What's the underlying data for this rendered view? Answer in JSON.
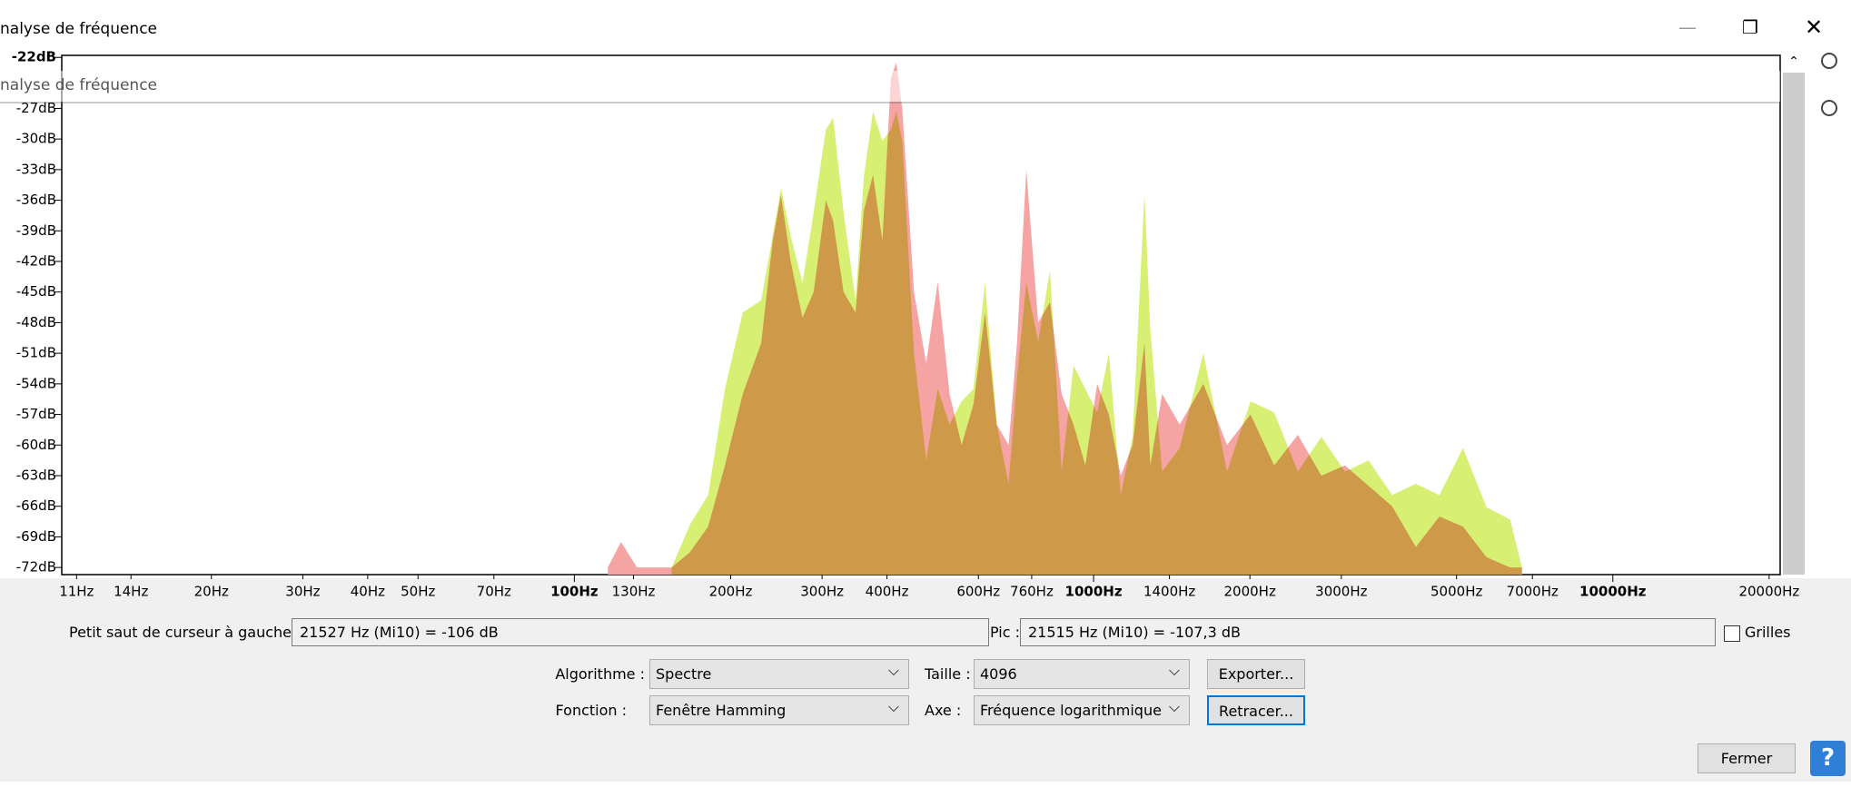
{
  "window": {
    "title": "nalyse de fréquence",
    "ghost_title": "nalyse de fréquence"
  },
  "chart_data": {
    "type": "area",
    "x": [
      116,
      123,
      132,
      154,
      167,
      181,
      195,
      211,
      229,
      241,
      250,
      261,
      275,
      289,
      305,
      315,
      330,
      348,
      361,
      376,
      392,
      407,
      417,
      428,
      451,
      476,
      501,
      528,
      557,
      587,
      618,
      651,
      686,
      712,
      742,
      782,
      824,
      868,
      915,
      964,
      1016,
      1070,
      1128,
      1189,
      1253,
      1286,
      1355,
      1465,
      1627,
      1807,
      2006,
      2227,
      2474,
      2746,
      3049,
      3385,
      3758,
      4174,
      4634,
      5145,
      5712,
      6342,
      6683
    ],
    "series": [
      {
        "color": "#d7ef72",
        "values": [
          null,
          null,
          null,
          -72,
          -67.8,
          -64.9,
          -54.5,
          -47,
          -45.8,
          -39.5,
          -34.8,
          -39.5,
          -44.1,
          -37.2,
          -29.1,
          -27.9,
          -37.2,
          -45.8,
          -33.7,
          -27.3,
          -30.2,
          -29.1,
          -27.3,
          -30.2,
          -51,
          -61.5,
          -54.5,
          -58,
          -55.7,
          -54.5,
          -44.1,
          -58,
          -63.8,
          -53.4,
          -44.1,
          -49.9,
          -42.9,
          -62.6,
          -52.2,
          -54.5,
          -56.8,
          -51,
          -64.9,
          -59.2,
          -35.4,
          -48.7,
          -62.6,
          -60.3,
          -51,
          -62.6,
          -55.7,
          -56.8,
          -62.6,
          -59.2,
          -62.6,
          -61.5,
          -64.9,
          -63.8,
          -64.9,
          -60.3,
          -66.1,
          -67.3,
          -72
        ]
      },
      {
        "color": "#f5a3a3",
        "values": [
          -72,
          -69.5,
          -72,
          -72,
          -70.5,
          -68,
          -62,
          -55,
          -50,
          -40,
          -35.5,
          -42,
          -47.5,
          -45,
          -36,
          -38,
          -45,
          -47,
          -37,
          -33.5,
          -40,
          -24,
          -22.5,
          -27,
          -45,
          -52,
          -44,
          -55,
          -60,
          -56,
          -47,
          -58,
          -60,
          -50,
          -33,
          -48,
          -46,
          -55,
          -58,
          -62,
          -54,
          -57,
          -63,
          -60,
          -50,
          -62,
          -55,
          -58,
          -54,
          -60,
          -57,
          -62,
          -59,
          -63,
          -62,
          -64,
          -66,
          -70,
          -67,
          -68,
          -71,
          -72,
          -72
        ]
      }
    ],
    "xlog": true,
    "xlim": [
      10.3,
      21000
    ],
    "xticks": [
      {
        "value": 11,
        "label": "11Hz"
      },
      {
        "value": 14,
        "label": "14Hz"
      },
      {
        "value": 20,
        "label": "20Hz"
      },
      {
        "value": 30,
        "label": "30Hz"
      },
      {
        "value": 40,
        "label": "40Hz"
      },
      {
        "value": 50,
        "label": "50Hz"
      },
      {
        "value": 70,
        "label": "70Hz"
      },
      {
        "value": 100,
        "label": "100Hz"
      },
      {
        "value": 130,
        "label": "130Hz"
      },
      {
        "value": 200,
        "label": "200Hz"
      },
      {
        "value": 300,
        "label": "300Hz"
      },
      {
        "value": 400,
        "label": "400Hz"
      },
      {
        "value": 600,
        "label": "600Hz"
      },
      {
        "value": 760,
        "label": "760Hz"
      },
      {
        "value": 1000,
        "label": "1000Hz"
      },
      {
        "value": 1400,
        "label": "1400Hz"
      },
      {
        "value": 2000,
        "label": "2000Hz"
      },
      {
        "value": 3000,
        "label": "3000Hz"
      },
      {
        "value": 5000,
        "label": "5000Hz"
      },
      {
        "value": 7000,
        "label": "7000Hz"
      },
      {
        "value": 10000,
        "label": "10000Hz"
      },
      {
        "value": 20000,
        "label": "20000Hz"
      }
    ],
    "ylim": [
      -72.7,
      -21.8
    ],
    "yticks": [
      {
        "value": -22,
        "label": "-22dB"
      },
      {
        "value": -27,
        "label": "-27dB"
      },
      {
        "value": -30,
        "label": "-30dB"
      },
      {
        "value": -33,
        "label": "-33dB"
      },
      {
        "value": -36,
        "label": "-36dB"
      },
      {
        "value": -39,
        "label": "-39dB"
      },
      {
        "value": -42,
        "label": "-42dB"
      },
      {
        "value": -45,
        "label": "-45dB"
      },
      {
        "value": -48,
        "label": "-48dB"
      },
      {
        "value": -51,
        "label": "-51dB"
      },
      {
        "value": -54,
        "label": "-54dB"
      },
      {
        "value": -57,
        "label": "-57dB"
      },
      {
        "value": -60,
        "label": "-60dB"
      },
      {
        "value": -63,
        "label": "-63dB"
      },
      {
        "value": -66,
        "label": "-66dB"
      },
      {
        "value": -69,
        "label": "-69dB"
      },
      {
        "value": -72,
        "label": "-72dB"
      }
    ],
    "grid": false
  },
  "controls": {
    "cursor_label": "Petit saut de curseur à gauche :",
    "cursor_value": "21527 Hz (Mi10) = -106 dB",
    "peak_label": "Pic :",
    "peak_value": "21515 Hz (Mi10) = -107,3 dB",
    "grid_label": "Grilles",
    "algorithm_label": "Algorithme :",
    "algorithm_value": "Spectre",
    "size_label": "Taille :",
    "size_value": "4096",
    "export_button": "Exporter...",
    "function_label": "Fonction :",
    "function_value": "Fenêtre Hamming",
    "axis_label": "Axe :",
    "axis_value": "Fréquence logarithmique",
    "replot_button": "Retracer...",
    "close_button": "Fermer",
    "help_button": "?"
  }
}
